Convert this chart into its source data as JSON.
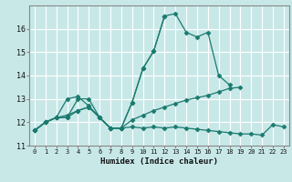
{
  "title": "",
  "xlabel": "Humidex (Indice chaleur)",
  "bg_color": "#c8e8e8",
  "grid_color": "#ffffff",
  "line_color": "#1a7a6e",
  "xlim": [
    -0.5,
    23.5
  ],
  "ylim": [
    11.0,
    17.0
  ],
  "xticks": [
    0,
    1,
    2,
    3,
    4,
    5,
    6,
    7,
    8,
    9,
    10,
    11,
    12,
    13,
    14,
    15,
    16,
    17,
    18,
    19,
    20,
    21,
    22,
    23
  ],
  "yticks": [
    11,
    12,
    13,
    14,
    15,
    16
  ],
  "line1": [
    11.65,
    12.0,
    12.2,
    12.2,
    13.0,
    13.0,
    12.2,
    11.75,
    11.75,
    12.85,
    14.3,
    15.05,
    16.55,
    16.65,
    15.85,
    15.65,
    15.85,
    14.0,
    13.6,
    null,
    null,
    null,
    null,
    null
  ],
  "line2": [
    11.65,
    12.0,
    12.2,
    12.2,
    12.5,
    12.65,
    12.2,
    11.75,
    11.75,
    11.8,
    11.75,
    11.8,
    11.75,
    11.8,
    11.75,
    11.7,
    11.65,
    11.6,
    11.55,
    11.5,
    11.5,
    11.45,
    11.9,
    11.8
  ],
  "line3": [
    11.65,
    12.0,
    12.2,
    12.3,
    12.5,
    12.65,
    12.2,
    11.75,
    11.75,
    12.1,
    12.3,
    12.5,
    12.65,
    12.8,
    12.95,
    13.05,
    13.15,
    13.3,
    13.45,
    13.5,
    null,
    null,
    null,
    null
  ],
  "line4": [
    11.65,
    12.0,
    12.2,
    13.0,
    13.1,
    12.7,
    12.2,
    11.75,
    11.75,
    12.85,
    14.3,
    15.05,
    16.55,
    null,
    null,
    null,
    null,
    null,
    null,
    null,
    null,
    null,
    null,
    null
  ]
}
